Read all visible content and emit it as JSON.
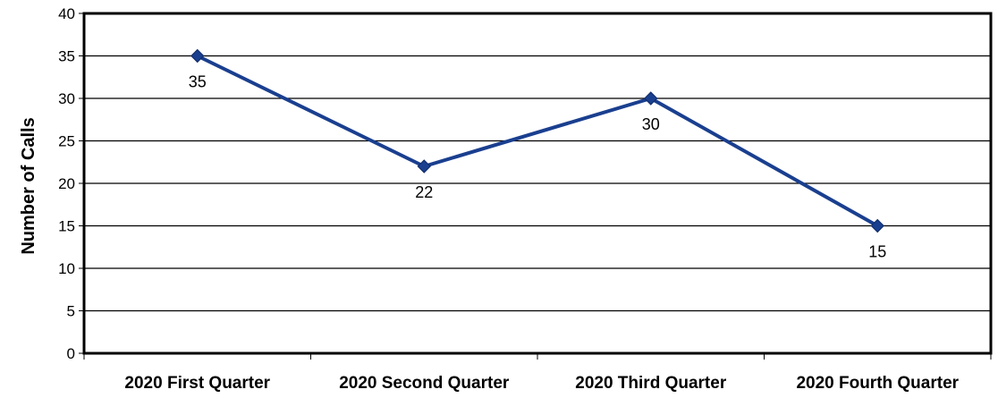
{
  "chart_data": {
    "type": "line",
    "title": "",
    "xlabel": "",
    "ylabel": "Number of Calls",
    "categories": [
      "2020 First Quarter",
      "2020 Second Quarter",
      "2020 Third Quarter",
      "2020 Fourth Quarter"
    ],
    "series": [
      {
        "values": [
          35,
          22,
          30,
          15
        ],
        "color": "#1a3f8f",
        "marker": "diamond"
      }
    ],
    "ylim": [
      0,
      40
    ],
    "yticks": [
      0,
      5,
      10,
      15,
      20,
      25,
      30,
      35,
      40
    ],
    "grid": true,
    "legend": "none",
    "data_labels": true,
    "plot_border": true
  }
}
